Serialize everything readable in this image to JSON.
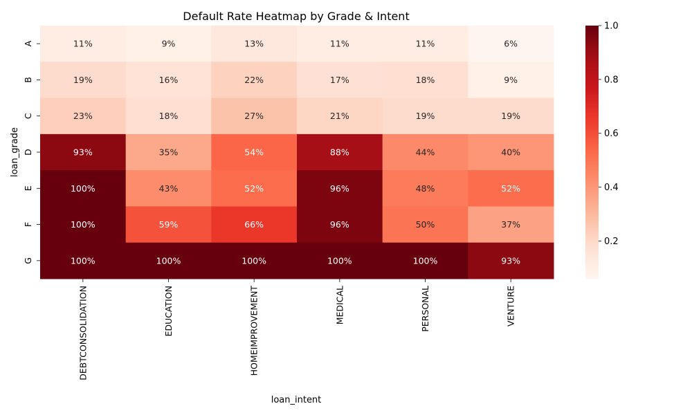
{
  "chart_data": {
    "type": "heatmap",
    "title": "Default Rate Heatmap by Grade & Intent",
    "xlabel": "loan_intent",
    "ylabel": "loan_grade",
    "x_categories": [
      "DEBTCONSOLIDATION",
      "EDUCATION",
      "HOMEIMPROVEMENT",
      "MEDICAL",
      "PERSONAL",
      "VENTURE"
    ],
    "y_categories": [
      "A",
      "B",
      "C",
      "D",
      "E",
      "F",
      "G"
    ],
    "values": [
      [
        0.11,
        0.09,
        0.13,
        0.11,
        0.11,
        0.06
      ],
      [
        0.19,
        0.16,
        0.22,
        0.17,
        0.18,
        0.09
      ],
      [
        0.23,
        0.18,
        0.27,
        0.21,
        0.19,
        0.19
      ],
      [
        0.93,
        0.35,
        0.54,
        0.88,
        0.44,
        0.4
      ],
      [
        1.0,
        0.43,
        0.52,
        0.96,
        0.48,
        0.52
      ],
      [
        1.0,
        0.59,
        0.66,
        0.96,
        0.5,
        0.37
      ],
      [
        1.0,
        1.0,
        1.0,
        1.0,
        1.0,
        0.93
      ]
    ],
    "cell_labels": [
      [
        "11%",
        "9%",
        "13%",
        "11%",
        "11%",
        "6%"
      ],
      [
        "19%",
        "16%",
        "22%",
        "17%",
        "18%",
        "9%"
      ],
      [
        "23%",
        "18%",
        "27%",
        "21%",
        "19%",
        "19%"
      ],
      [
        "93%",
        "35%",
        "54%",
        "88%",
        "44%",
        "40%"
      ],
      [
        "100%",
        "43%",
        "52%",
        "96%",
        "48%",
        "52%"
      ],
      [
        "100%",
        "59%",
        "66%",
        "96%",
        "50%",
        "37%"
      ],
      [
        "100%",
        "100%",
        "100%",
        "100%",
        "100%",
        "93%"
      ]
    ],
    "colormap": "Reds",
    "color_range": [
      0.06,
      1.0
    ],
    "colorbar_ticks": [
      "0.2",
      "0.4",
      "0.6",
      "0.8",
      "1.0"
    ],
    "colorbar_tick_values": [
      0.2,
      0.4,
      0.6,
      0.8,
      1.0
    ],
    "grid": false,
    "legend": "colorbar right"
  }
}
